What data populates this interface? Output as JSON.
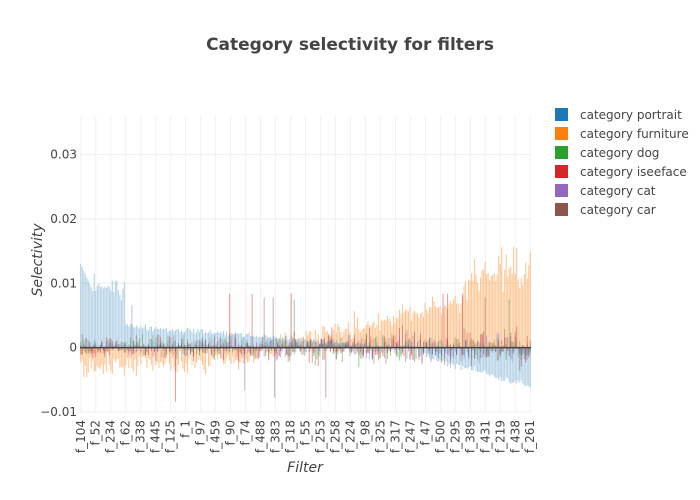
{
  "chart_data": {
    "type": "bar",
    "title": "Category selectivity for filters",
    "xlabel": "Filter",
    "ylabel": "Selectivity",
    "ylim": [
      -0.01,
      0.036
    ],
    "yticks": [
      -0.01,
      0,
      0.01,
      0.02,
      0.03
    ],
    "ytick_labels": [
      "−0.01",
      "0",
      "0.01",
      "0.02",
      "0.03"
    ],
    "grid": true,
    "legend_position": "top-right",
    "n_filters": 300,
    "x_tick_labels": [
      "f_104",
      "f_52",
      "f_234",
      "f_62",
      "f_338",
      "f_445",
      "f_125",
      "f_1",
      "f_97",
      "f_459",
      "f_90",
      "f_74",
      "f_488",
      "f_383",
      "f_318",
      "f_55",
      "f_253",
      "f_258",
      "f_224",
      "f_98",
      "f_325",
      "f_317",
      "f_247",
      "f_47",
      "f_500",
      "f_295",
      "f_389",
      "f_431",
      "f_219",
      "f_438",
      "f_261"
    ],
    "series": [
      {
        "name": "category portrait",
        "color": "#1f77b4",
        "role": "sorted",
        "start": 0.013,
        "end": -0.006
      },
      {
        "name": "category furniture",
        "color": "#ff7f0e",
        "role": "rising",
        "start": -0.004,
        "end": 0.014
      },
      {
        "name": "category dog",
        "color": "#2ca02c",
        "role": "noise",
        "amplitude": 0.0025
      },
      {
        "name": "category iseeface",
        "color": "#d62728",
        "role": "noise",
        "amplitude": 0.0028
      },
      {
        "name": "category cat",
        "color": "#9467bd",
        "role": "noise",
        "amplitude": 0.0022
      },
      {
        "name": "category car",
        "color": "#8c564b",
        "role": "noise",
        "amplitude": 0.0026
      }
    ]
  }
}
